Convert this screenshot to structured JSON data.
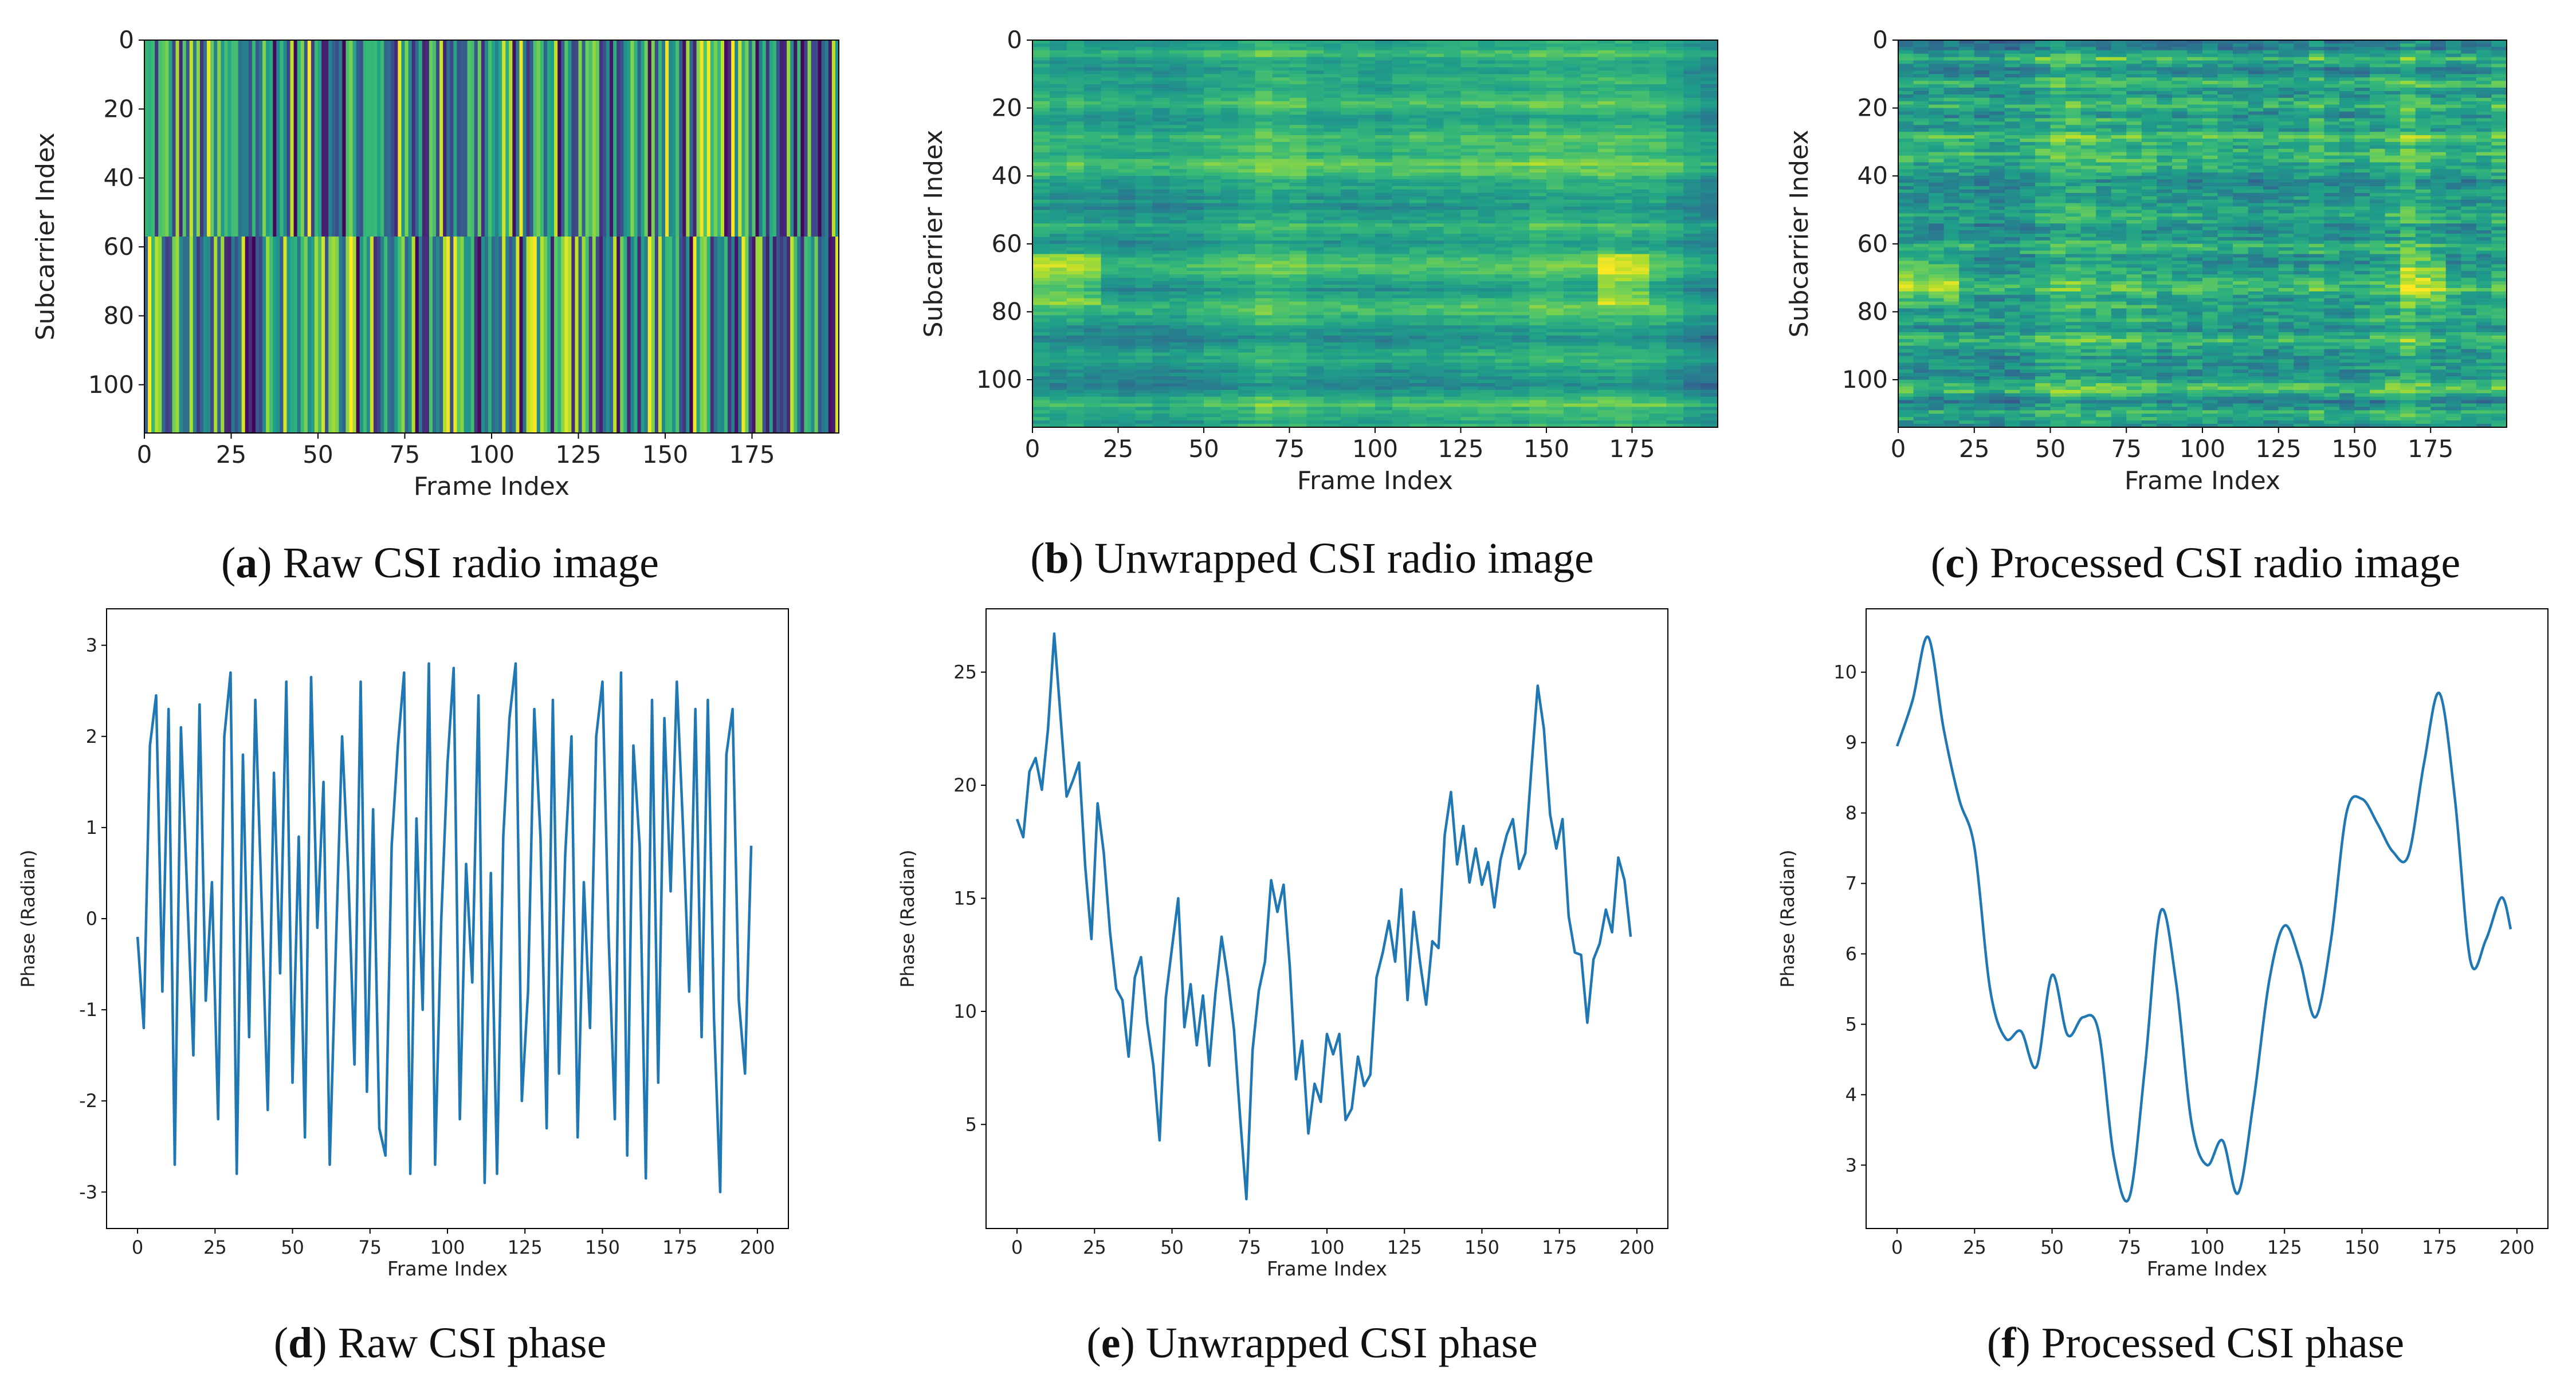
{
  "figure": {
    "panels": [
      {
        "id": "a",
        "caption_letter": "a",
        "caption_text": "Raw CSI radio image"
      },
      {
        "id": "b",
        "caption_letter": "b",
        "caption_text": "Unwrapped CSI radio image"
      },
      {
        "id": "c",
        "caption_letter": "c",
        "caption_text": "Processed CSI radio image"
      },
      {
        "id": "d",
        "caption_letter": "d",
        "caption_text": "Raw CSI phase"
      },
      {
        "id": "e",
        "caption_letter": "e",
        "caption_text": "Unwrapped CSI phase"
      },
      {
        "id": "f",
        "caption_letter": "f",
        "caption_text": "Processed CSI phase"
      }
    ]
  },
  "colors": {
    "line": "#1f77b4",
    "viridis": [
      "#440154",
      "#482878",
      "#3e4989",
      "#31688e",
      "#26828e",
      "#1f9e89",
      "#35b779",
      "#6ece58",
      "#b5de2b",
      "#fde725"
    ]
  },
  "chart_data": [
    {
      "id": "a",
      "type": "heatmap",
      "title": "",
      "xlabel": "Frame Index",
      "ylabel": "Subcarrier Index",
      "xlim": [
        0,
        200
      ],
      "ylim": [
        114,
        0
      ],
      "xticks": [
        0,
        25,
        50,
        75,
        100,
        125,
        150,
        175
      ],
      "yticks": [
        0,
        20,
        40,
        60,
        80,
        100
      ],
      "n_frames": 200,
      "n_subcarriers": 114,
      "description_values": "random phase per frame column, split at subcarrier 57"
    },
    {
      "id": "b",
      "type": "heatmap",
      "title": "",
      "xlabel": "Frame Index",
      "ylabel": "Subcarrier Index",
      "xlim": [
        0,
        200
      ],
      "ylim": [
        114,
        0
      ],
      "xticks": [
        0,
        25,
        50,
        75,
        100,
        125,
        150,
        175
      ],
      "yticks": [
        0,
        20,
        40,
        60,
        80,
        100
      ],
      "n_frames": 200,
      "n_subcarriers": 114
    },
    {
      "id": "c",
      "type": "heatmap",
      "title": "",
      "xlabel": "Frame Index",
      "ylabel": "Subcarrier Index",
      "xlim": [
        0,
        200
      ],
      "ylim": [
        114,
        0
      ],
      "xticks": [
        0,
        25,
        50,
        75,
        100,
        125,
        150,
        175
      ],
      "yticks": [
        0,
        20,
        40,
        60,
        80,
        100
      ],
      "n_frames": 200,
      "n_subcarriers": 114
    },
    {
      "id": "d",
      "type": "line",
      "title": "",
      "xlabel": "Frame Index",
      "ylabel": "Phase (Radian)",
      "xlim": [
        -10,
        210
      ],
      "ylim": [
        -3.4,
        3.4
      ],
      "xticks": [
        0,
        25,
        50,
        75,
        100,
        125,
        150,
        175,
        200
      ],
      "yticks": [
        -3,
        -2,
        -1,
        0,
        1,
        2,
        3
      ],
      "x": [
        0,
        2,
        4,
        6,
        8,
        10,
        12,
        14,
        16,
        18,
        20,
        22,
        24,
        26,
        28,
        30,
        32,
        34,
        36,
        38,
        40,
        42,
        44,
        46,
        48,
        50,
        52,
        54,
        56,
        58,
        60,
        62,
        64,
        66,
        68,
        70,
        72,
        74,
        76,
        78,
        80,
        82,
        84,
        86,
        88,
        90,
        92,
        94,
        96,
        98,
        100,
        102,
        104,
        106,
        108,
        110,
        112,
        114,
        116,
        118,
        120,
        122,
        124,
        126,
        128,
        130,
        132,
        134,
        136,
        138,
        140,
        142,
        144,
        146,
        148,
        150,
        152,
        154,
        156,
        158,
        160,
        162,
        164,
        166,
        168,
        170,
        172,
        174,
        176,
        178,
        180,
        182,
        184,
        186,
        188,
        190,
        192,
        194,
        196,
        198
      ],
      "y": [
        -0.2,
        -1.2,
        1.9,
        2.45,
        -0.8,
        2.3,
        -2.7,
        2.1,
        0.3,
        -1.5,
        2.35,
        -0.9,
        0.4,
        -2.2,
        2.0,
        2.7,
        -2.8,
        1.8,
        -1.3,
        2.4,
        0.2,
        -2.1,
        1.6,
        -0.6,
        2.6,
        -1.8,
        0.9,
        -2.4,
        2.65,
        -0.1,
        1.5,
        -2.7,
        -0.3,
        2.0,
        0.5,
        -1.6,
        2.6,
        -1.9,
        1.2,
        -2.3,
        -2.6,
        0.8,
        1.9,
        2.7,
        -2.8,
        1.1,
        -1.0,
        2.8,
        -2.7,
        0.0,
        1.7,
        2.75,
        -2.2,
        0.6,
        -0.7,
        2.45,
        -2.9,
        0.5,
        -2.8,
        0.9,
        2.2,
        2.8,
        -2.0,
        -0.8,
        2.3,
        0.9,
        -2.3,
        2.4,
        -1.7,
        0.7,
        2.0,
        -2.4,
        0.4,
        -1.2,
        2.0,
        2.6,
        -0.2,
        -2.2,
        2.7,
        -2.6,
        1.9,
        0.8,
        -2.85,
        2.4,
        -1.8,
        2.2,
        0.3,
        2.6,
        1.0,
        -0.8,
        2.3,
        -1.3,
        2.4,
        -1.1,
        -3.0,
        1.8,
        2.3,
        -0.9,
        -1.7,
        0.8
      ]
    },
    {
      "id": "e",
      "type": "line",
      "title": "",
      "xlabel": "Frame Index",
      "ylabel": "Phase (Radian)",
      "xlim": [
        -10,
        210
      ],
      "ylim": [
        0.4,
        27.8
      ],
      "xticks": [
        0,
        25,
        50,
        75,
        100,
        125,
        150,
        175,
        200
      ],
      "yticks": [
        5,
        10,
        15,
        20,
        25
      ],
      "x": [
        0,
        2,
        4,
        6,
        8,
        10,
        12,
        14,
        16,
        18,
        20,
        22,
        24,
        26,
        28,
        30,
        32,
        34,
        36,
        38,
        40,
        42,
        44,
        46,
        48,
        50,
        52,
        54,
        56,
        58,
        60,
        62,
        64,
        66,
        68,
        70,
        72,
        74,
        76,
        78,
        80,
        82,
        84,
        86,
        88,
        90,
        92,
        94,
        96,
        98,
        100,
        102,
        104,
        106,
        108,
        110,
        112,
        114,
        116,
        118,
        120,
        122,
        124,
        126,
        128,
        130,
        132,
        134,
        136,
        138,
        140,
        142,
        144,
        146,
        148,
        150,
        152,
        154,
        156,
        158,
        160,
        162,
        164,
        166,
        168,
        170,
        172,
        174,
        176,
        178,
        180,
        182,
        184,
        186,
        188,
        190,
        192,
        194,
        196,
        198
      ],
      "y": [
        18.5,
        17.7,
        20.6,
        21.2,
        19.8,
        22.5,
        26.7,
        23.1,
        19.5,
        20.2,
        21.0,
        16.4,
        13.2,
        19.2,
        17.0,
        13.5,
        11.0,
        10.5,
        8.0,
        11.5,
        12.4,
        9.5,
        7.6,
        4.3,
        10.6,
        12.8,
        15.0,
        9.3,
        11.2,
        8.5,
        10.7,
        7.6,
        10.8,
        13.3,
        11.5,
        9.2,
        5.3,
        1.7,
        8.3,
        10.9,
        12.2,
        15.8,
        14.4,
        15.6,
        12.0,
        7.0,
        8.7,
        4.6,
        6.8,
        6.0,
        9.0,
        8.1,
        9.0,
        5.2,
        5.7,
        8.0,
        6.7,
        7.2,
        11.5,
        12.6,
        14.0,
        12.2,
        15.4,
        10.5,
        14.4,
        12.2,
        10.3,
        13.1,
        12.8,
        17.8,
        19.7,
        16.5,
        18.2,
        15.7,
        17.2,
        15.6,
        16.6,
        14.6,
        16.7,
        17.8,
        18.5,
        16.3,
        17.0,
        20.8,
        24.4,
        22.5,
        18.7,
        17.2,
        18.5,
        14.2,
        12.6,
        12.5,
        9.5,
        12.3,
        13.0,
        14.5,
        13.5,
        16.8,
        15.8,
        13.3
      ]
    },
    {
      "id": "f",
      "type": "line",
      "title": "",
      "xlabel": "Frame Index",
      "ylabel": "Phase (Radian)",
      "xlim": [
        -10,
        210
      ],
      "ylim": [
        2.1,
        10.9
      ],
      "xticks": [
        0,
        25,
        50,
        75,
        100,
        125,
        150,
        175,
        200
      ],
      "yticks": [
        3,
        4,
        5,
        6,
        7,
        8,
        9,
        10
      ],
      "x": [
        0,
        5,
        10,
        15,
        20,
        25,
        30,
        35,
        40,
        45,
        50,
        55,
        60,
        65,
        70,
        75,
        80,
        85,
        90,
        95,
        100,
        105,
        110,
        115,
        120,
        125,
        130,
        135,
        140,
        145,
        150,
        155,
        160,
        165,
        170,
        175,
        180,
        185,
        190,
        195,
        198
      ],
      "y": [
        8.95,
        9.6,
        10.5,
        9.2,
        8.2,
        7.5,
        5.5,
        4.8,
        4.9,
        4.4,
        5.7,
        4.85,
        5.1,
        4.9,
        3.1,
        2.55,
        4.4,
        6.6,
        5.6,
        3.6,
        3.0,
        3.35,
        2.6,
        3.9,
        5.6,
        6.4,
        5.9,
        5.1,
        6.2,
        8.0,
        8.2,
        7.85,
        7.45,
        7.4,
        8.7,
        9.7,
        8.2,
        5.9,
        6.2,
        6.8,
        6.35
      ]
    }
  ]
}
